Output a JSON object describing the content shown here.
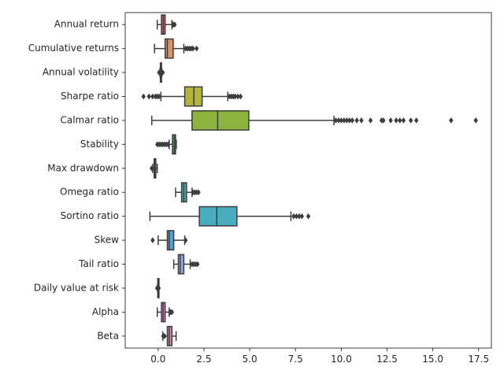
{
  "chart_data": {
    "type": "box",
    "orientation": "horizontal",
    "xlim": [
      -1.8,
      18.2
    ],
    "xticks": [
      0.0,
      2.5,
      5.0,
      7.5,
      10.0,
      12.5,
      15.0,
      17.5
    ],
    "xtick_labels": [
      "0.0",
      "2.5",
      "5.0",
      "7.5",
      "10.0",
      "12.5",
      "15.0",
      "17.5"
    ],
    "grid": false,
    "categories": [
      "Annual return",
      "Cumulative returns",
      "Annual volatility",
      "Sharpe ratio",
      "Calmar ratio",
      "Stability",
      "Max drawdown",
      "Omega ratio",
      "Sortino ratio",
      "Skew",
      "Tail ratio",
      "Daily value at risk",
      "Alpha",
      "Beta"
    ],
    "boxes": [
      {
        "label": "Annual return",
        "color": "#d0706f",
        "whislo": -0.05,
        "q1": 0.18,
        "med": 0.28,
        "q3": 0.38,
        "whishi": 0.75,
        "fliers": [
          0.8,
          0.85,
          0.9
        ]
      },
      {
        "label": "Cumulative returns",
        "color": "#e2915e",
        "whislo": -0.2,
        "q1": 0.38,
        "med": 0.5,
        "q3": 0.82,
        "whishi": 1.4,
        "fliers": [
          1.5,
          1.6,
          1.7,
          1.8,
          1.9,
          2.1
        ]
      },
      {
        "label": "Annual volatility",
        "color": "#b8a848",
        "whislo": 0.1,
        "q1": 0.12,
        "med": 0.15,
        "q3": 0.18,
        "whishi": 0.2,
        "fliers": [
          0.05,
          0.08,
          0.22,
          0.25
        ]
      },
      {
        "label": "Sharpe ratio",
        "color": "#b3b43a",
        "whislo": 0.15,
        "q1": 1.45,
        "med": 1.95,
        "q3": 2.4,
        "whishi": 3.8,
        "fliers": [
          -0.8,
          -0.5,
          -0.3,
          -0.15,
          -0.05,
          0.05,
          3.9,
          4.0,
          4.1,
          4.2,
          4.35,
          4.5
        ]
      },
      {
        "label": "Calmar ratio",
        "color": "#8cb43e",
        "whislo": -0.35,
        "q1": 1.85,
        "med": 3.25,
        "q3": 4.95,
        "whishi": 9.6,
        "fliers": [
          9.7,
          9.85,
          10.0,
          10.15,
          10.3,
          10.45,
          10.6,
          10.85,
          11.1,
          11.6,
          12.2,
          12.3,
          12.7,
          13.0,
          13.2,
          13.4,
          13.8,
          14.1,
          16.0,
          17.35
        ]
      },
      {
        "label": "Stability",
        "color": "#55b565",
        "whislo": 0.6,
        "q1": 0.78,
        "med": 0.88,
        "q3": 0.95,
        "whishi": 0.99,
        "fliers": [
          -0.05,
          0.05,
          0.15,
          0.25,
          0.35,
          0.45,
          0.55
        ]
      },
      {
        "label": "Max drawdown",
        "color": "#4aaf8d",
        "whislo": -0.3,
        "q1": -0.22,
        "med": -0.17,
        "q3": -0.13,
        "whishi": -0.05,
        "fliers": [
          -0.35,
          -0.32
        ]
      },
      {
        "label": "Omega ratio",
        "color": "#4cafa6",
        "whislo": 0.95,
        "q1": 1.28,
        "med": 1.4,
        "q3": 1.55,
        "whishi": 1.85,
        "fliers": [
          1.9,
          2.0,
          2.1,
          2.2
        ]
      },
      {
        "label": "Sortino ratio",
        "color": "#49adbf",
        "whislo": -0.45,
        "q1": 2.25,
        "med": 3.2,
        "q3": 4.3,
        "whishi": 7.25,
        "fliers": [
          7.4,
          7.55,
          7.7,
          7.85,
          8.2
        ]
      },
      {
        "label": "Skew",
        "color": "#4aa4d6",
        "whislo": 0.0,
        "q1": 0.5,
        "med": 0.6,
        "q3": 0.85,
        "whishi": 1.45,
        "fliers": [
          -0.3,
          1.5
        ]
      },
      {
        "label": "Tail ratio",
        "color": "#97a6e6",
        "whislo": 0.85,
        "q1": 1.1,
        "med": 1.2,
        "q3": 1.4,
        "whishi": 1.75,
        "fliers": [
          1.85,
          1.95,
          2.05,
          2.15
        ]
      },
      {
        "label": "Daily value at risk",
        "color": "#c98fe2",
        "whislo": -0.03,
        "q1": -0.02,
        "med": -0.015,
        "q3": -0.01,
        "whishi": 0.0,
        "fliers": [
          -0.06,
          0.03
        ]
      },
      {
        "label": "Alpha",
        "color": "#e07fcf",
        "whislo": -0.05,
        "q1": 0.18,
        "med": 0.27,
        "q3": 0.38,
        "whishi": 0.6,
        "fliers": [
          0.65,
          0.7,
          0.75
        ]
      },
      {
        "label": "Beta",
        "color": "#e386aa",
        "whislo": 0.25,
        "q1": 0.5,
        "med": 0.6,
        "q3": 0.75,
        "whishi": 0.98,
        "fliers": [
          0.28,
          0.35
        ]
      }
    ]
  }
}
